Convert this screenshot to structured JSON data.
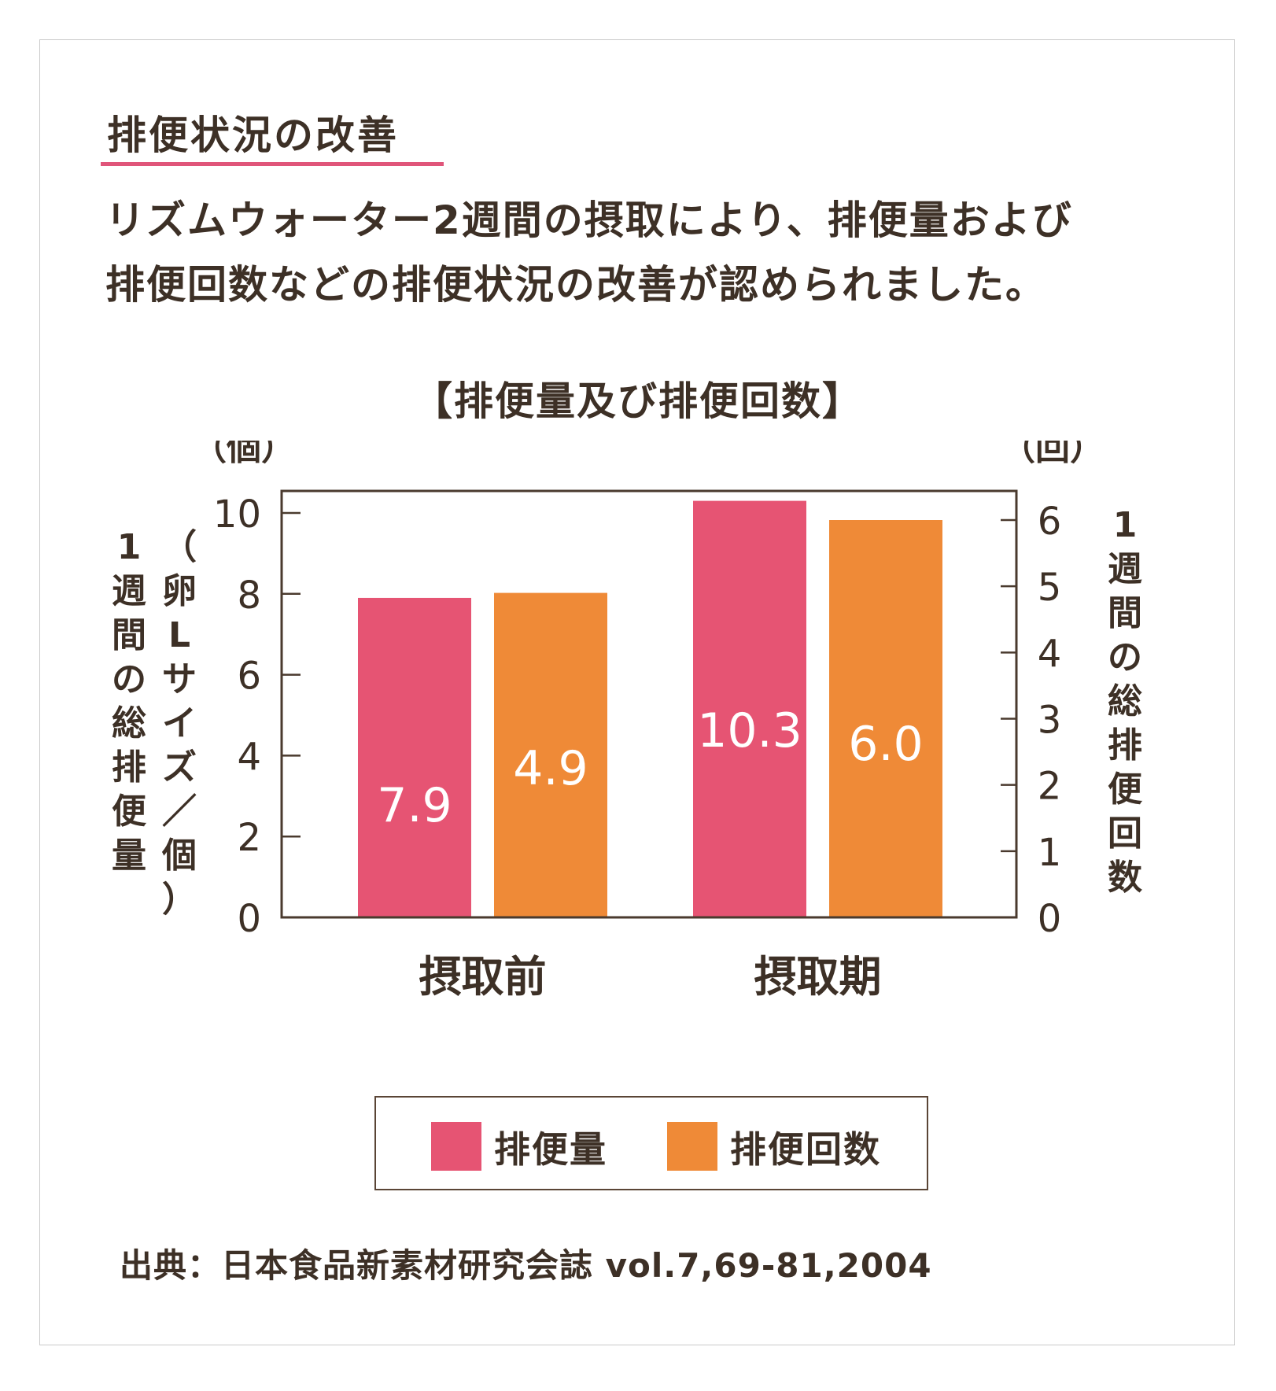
{
  "heading": "排便状況の改善",
  "description": {
    "line1": "リズムウォーター2週間の摂取により、排便量および",
    "line2": "排便回数などの排便状況の改善が認められました。"
  },
  "source": "出典：日本食品新素材研究会誌 vol.7,69-81,2004",
  "colors": {
    "amount": "#e65473",
    "count": "#ef8a37",
    "accent": "#e0557a",
    "text": "#3d3026"
  },
  "legend": {
    "amount_label": "排便量",
    "count_label": "排便回数"
  },
  "chart_data": {
    "type": "bar",
    "title": "【排便量及び排便回数】",
    "categories": [
      "摂取前",
      "摂取期"
    ],
    "series": [
      {
        "name": "排便量",
        "axis": "left",
        "values": [
          7.9,
          10.3
        ],
        "labels": [
          "7.9",
          "10.3"
        ],
        "color": "#e65473"
      },
      {
        "name": "排便回数",
        "axis": "right",
        "values": [
          4.9,
          6.0
        ],
        "labels": [
          "4.9",
          "6.0"
        ],
        "color": "#ef8a37"
      }
    ],
    "left_axis": {
      "unit": "（個）",
      "label": "1週間の総排便量",
      "sublabel": "（卵Lサイズ／個）",
      "ylim": [
        0,
        10
      ],
      "ticks": [
        0,
        2,
        4,
        6,
        8,
        10
      ]
    },
    "right_axis": {
      "unit": "（回）",
      "label": "1週間の総排便回数",
      "ylim": [
        0,
        6.2
      ],
      "ticks": [
        0,
        1,
        2,
        3,
        4,
        5,
        6
      ]
    },
    "grid": false,
    "legend_position": "bottom"
  }
}
